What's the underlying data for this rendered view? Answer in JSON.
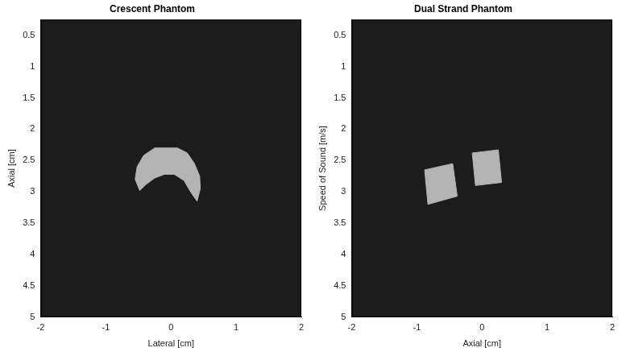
{
  "chart_data": [
    {
      "type": "area",
      "title": "Crescent Phantom",
      "x_label": "Lateral [cm]",
      "y_label": "Axial [cm]",
      "xlim": [
        -2,
        2
      ],
      "xticks": [
        -2,
        -1,
        0,
        1,
        2
      ],
      "ylim": [
        5,
        0.25
      ],
      "yticks": [
        0.5,
        1,
        1.5,
        2,
        2.5,
        3,
        3.5,
        4,
        4.5,
        5
      ],
      "grid": false,
      "series": [
        {
          "color": "#b4b4b4",
          "x": [
            -0.25,
            0.1,
            0.25,
            0.36,
            0.44,
            0.45,
            0.4,
            0.3,
            0.2,
            0.05,
            -0.1,
            -0.25,
            -0.38,
            -0.48,
            -0.55,
            -0.52,
            -0.42
          ],
          "y": [
            2.3,
            2.3,
            2.38,
            2.55,
            2.75,
            2.95,
            3.15,
            3.0,
            2.82,
            2.72,
            2.72,
            2.78,
            2.88,
            2.98,
            2.8,
            2.6,
            2.42
          ]
        }
      ]
    },
    {
      "type": "area",
      "title": "Dual Strand Phantom",
      "x_label": "Axial [cm]",
      "y_label": "Speed of Sound [m/s]",
      "xlim": [
        -2,
        2
      ],
      "xticks": [
        -2,
        -1,
        0,
        1,
        2
      ],
      "ylim": [
        5,
        0.25
      ],
      "yticks": [
        0.5,
        1,
        1.5,
        2,
        2.5,
        3,
        3.5,
        4,
        4.5,
        5
      ],
      "grid": false,
      "series": [
        {
          "color": "#b4b4b4",
          "x": [
            -0.88,
            -0.45,
            -0.38,
            -0.83
          ],
          "y": [
            2.65,
            2.55,
            3.07,
            3.2
          ]
        },
        {
          "color": "#b4b4b4",
          "x": [
            -0.15,
            0.25,
            0.3,
            -0.1
          ],
          "y": [
            2.38,
            2.33,
            2.85,
            2.9
          ]
        }
      ]
    }
  ]
}
